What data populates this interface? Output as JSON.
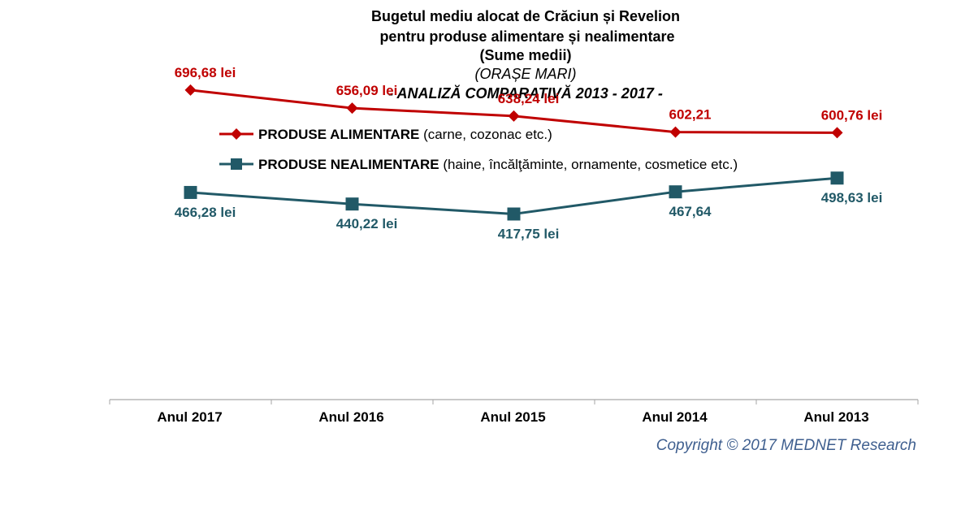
{
  "title_lines": [
    "Bugetul mediu alocat de Crăciun și Revelion",
    "pentru produse alimentare și  nealimentare",
    "(Sume medii)",
    "(ORAȘE MARI)",
    "- ANALIZĂ COMPARATIVĂ 2013 - 2017 -"
  ],
  "legend": [
    {
      "bold": "PRODUSE ALIMENTARE",
      "rest": " (carne, cozonac etc.)"
    },
    {
      "bold": "PRODUSE NEALIMENTARE",
      "rest": " (haine, încălţăminte, ornamente, cosmetice etc.)"
    }
  ],
  "copyright": "Copyright ©  2017 MEDNET Research",
  "colors": {
    "alimentare": "#C00000",
    "nealimentare": "#215967",
    "axis": "#A6A6A6",
    "copyright": "#3F5F8F"
  },
  "chart_data": {
    "type": "line",
    "categories": [
      "Anul 2017",
      "Anul 2016",
      "Anul 2015",
      "Anul 2014",
      "Anul 2013"
    ],
    "series": [
      {
        "name": "PRODUSE ALIMENTARE (carne, cozonac etc.)",
        "marker": "diamond",
        "values": [
          696.68,
          656.09,
          638.24,
          602.21,
          600.76
        ],
        "labels": [
          "696,68 lei",
          "656,09 lei",
          "638,24 lei",
          "602,21",
          "600,76 lei"
        ]
      },
      {
        "name": "PRODUSE NEALIMENTARE (haine, încălţăminte, ornamente, cosmetice etc.)",
        "marker": "square",
        "values": [
          466.28,
          440.22,
          417.75,
          467.64,
          498.63
        ],
        "labels": [
          "466,28 lei",
          "440,22 lei",
          "417,75 lei",
          "467,64",
          "498,63 lei"
        ]
      }
    ],
    "ylim": [
      0,
      1000
    ],
    "grid": false,
    "legend_position": "top",
    "y_axis_visible": false
  }
}
